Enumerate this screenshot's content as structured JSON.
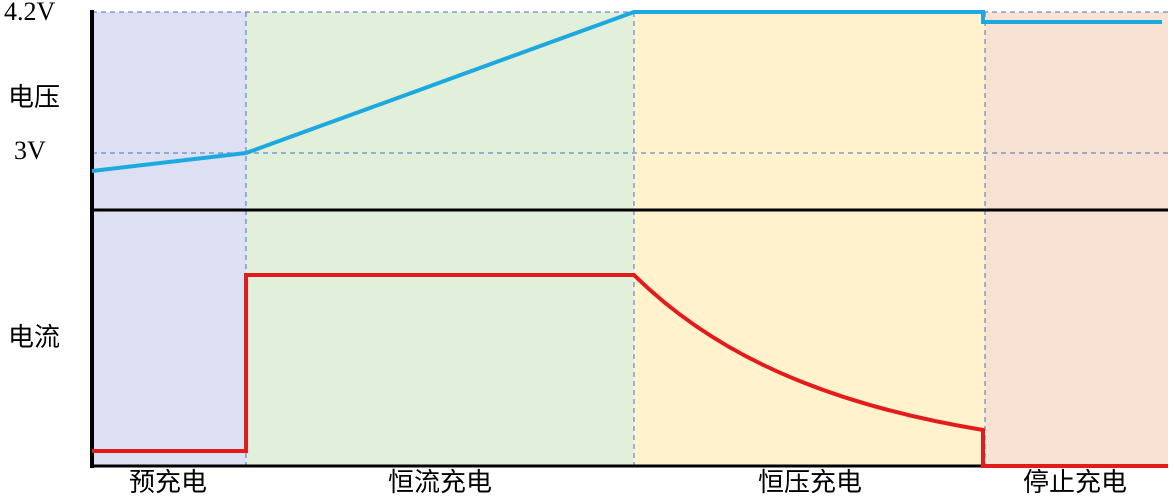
{
  "axis_labels": {
    "voltage_max": "4.2V",
    "voltage": "电压",
    "voltage_threshold": "3V",
    "current": "电流"
  },
  "phases": [
    {
      "label": "预充电"
    },
    {
      "label": "恒流充电"
    },
    {
      "label": "恒压充电"
    },
    {
      "label": "停止充电"
    }
  ]
}
